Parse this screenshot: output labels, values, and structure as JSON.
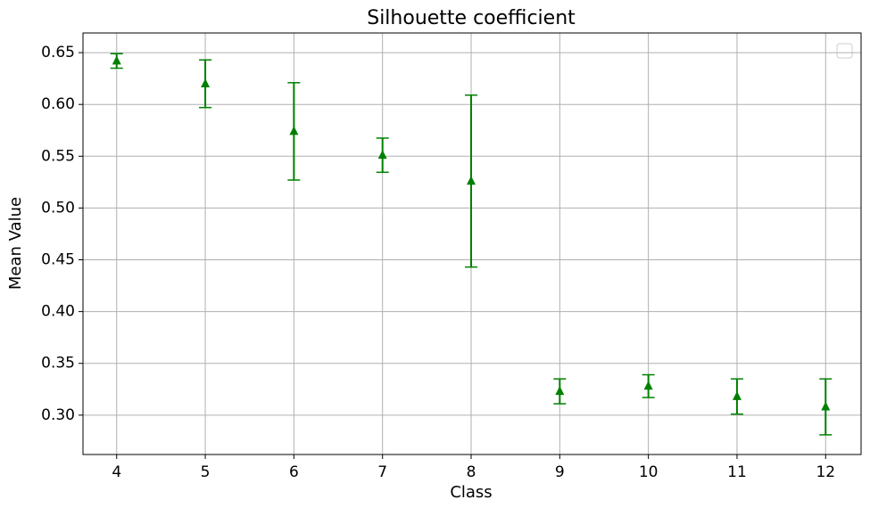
{
  "chart_data": {
    "type": "errorbar",
    "title": "Silhouette coefficient",
    "x_label": "Class",
    "y_label": "Mean Value",
    "x": [
      4,
      5,
      6,
      7,
      8,
      9,
      10,
      11,
      12
    ],
    "series": [
      {
        "color": "#008000",
        "marker": "triangle",
        "values": [
          0.642,
          0.62,
          0.574,
          0.551,
          0.526,
          0.323,
          0.328,
          0.318,
          0.308
        ],
        "errors": [
          0.007,
          0.023,
          0.047,
          0.0165,
          0.083,
          0.012,
          0.011,
          0.017,
          0.027
        ]
      }
    ],
    "xlim": [
      3.62,
      12.4
    ],
    "ylim": [
      0.262,
      0.669
    ],
    "xticks": [
      4,
      5,
      6,
      7,
      8,
      9,
      10,
      11,
      12
    ],
    "yticks": [
      {
        "value": 0.3,
        "label": "0.30"
      },
      0.35,
      {
        "value": 0.4,
        "label": "0.40"
      },
      0.45,
      {
        "value": 0.5,
        "label": "0.50"
      },
      0.55,
      {
        "value": 0.6,
        "label": "0.60"
      },
      0.65
    ],
    "grid": true
  }
}
